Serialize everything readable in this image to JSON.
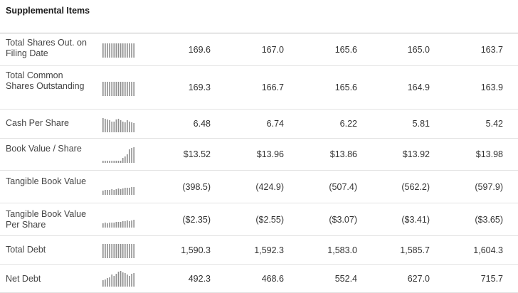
{
  "section": {
    "title": "Supplemental Items"
  },
  "rows": [
    {
      "label": "Total Shares Out. on Filing Date",
      "values": [
        "169.6",
        "167.0",
        "165.6",
        "165.0",
        "163.7"
      ],
      "spark": [
        0.9,
        0.9,
        0.9,
        0.9,
        0.9,
        0.9,
        0.9,
        0.9,
        0.9,
        0.9,
        0.9,
        0.9,
        0.9,
        0.9,
        0.9
      ]
    },
    {
      "label": "Total Common Shares Outstanding",
      "values": [
        "169.3",
        "166.7",
        "165.6",
        "164.9",
        "163.9"
      ],
      "spark": [
        0.9,
        0.9,
        0.9,
        0.9,
        0.9,
        0.9,
        0.9,
        0.9,
        0.9,
        0.9,
        0.9,
        0.9,
        0.9,
        0.9,
        0.9
      ]
    },
    {
      "label": "Cash Per Share",
      "values": [
        "6.48",
        "6.74",
        "6.22",
        "5.81",
        "5.42"
      ],
      "spark": [
        0.9,
        0.85,
        0.8,
        0.75,
        0.7,
        0.7,
        0.8,
        0.85,
        0.75,
        0.7,
        0.65,
        0.75,
        0.7,
        0.65,
        0.6
      ]
    },
    {
      "label": "Book Value / Share",
      "values": [
        "$13.52",
        "$13.96",
        "$13.86",
        "$13.92",
        "$13.98"
      ],
      "spark": [
        0.12,
        0.12,
        0.12,
        0.12,
        0.12,
        0.12,
        0.12,
        0.12,
        0.15,
        0.3,
        0.4,
        0.55,
        0.85,
        0.95,
        1.0
      ]
    },
    {
      "label": "Tangible Book Value",
      "values": [
        "(398.5)",
        "(424.9)",
        "(507.4)",
        "(562.2)",
        "(597.9)"
      ],
      "spark": [
        0.28,
        0.32,
        0.3,
        0.34,
        0.36,
        0.34,
        0.38,
        0.4,
        0.38,
        0.42,
        0.44,
        0.46,
        0.44,
        0.48,
        0.5
      ]
    },
    {
      "label": "Tangible Book Value Per Share",
      "values": [
        "($2.35)",
        "($2.55)",
        "($3.07)",
        "($3.41)",
        "($3.65)"
      ],
      "spark": [
        0.26,
        0.3,
        0.28,
        0.32,
        0.34,
        0.32,
        0.36,
        0.38,
        0.36,
        0.4,
        0.42,
        0.44,
        0.42,
        0.46,
        0.48
      ]
    },
    {
      "label": "Total Debt",
      "values": [
        "1,590.3",
        "1,592.3",
        "1,583.0",
        "1,585.7",
        "1,604.3"
      ],
      "spark": [
        0.9,
        0.9,
        0.9,
        0.9,
        0.9,
        0.9,
        0.9,
        0.9,
        0.9,
        0.9,
        0.9,
        0.9,
        0.9,
        0.9,
        0.9
      ]
    },
    {
      "label": "Net Debt",
      "values": [
        "492.3",
        "468.6",
        "552.4",
        "627.0",
        "715.7"
      ],
      "spark": [
        0.4,
        0.45,
        0.55,
        0.6,
        0.75,
        0.7,
        0.8,
        0.95,
        1.0,
        0.9,
        0.85,
        0.75,
        0.7,
        0.8,
        0.85
      ]
    }
  ],
  "colors": {
    "spark_bar": "#8c8c8c",
    "row_rule": "#e2e2e2",
    "header_rule": "#bdbdbd"
  }
}
